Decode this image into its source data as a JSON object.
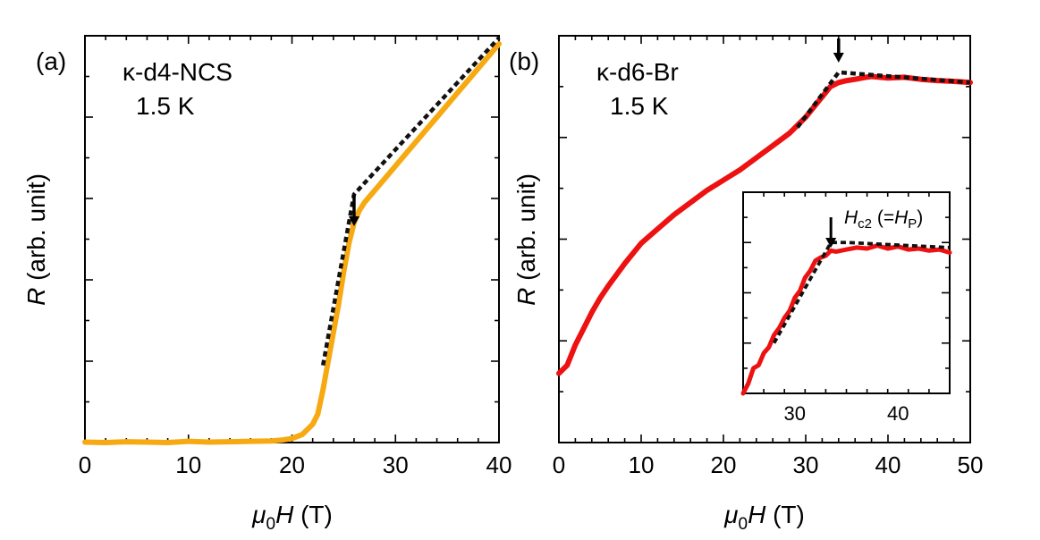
{
  "colors": {
    "panel_a_series": "#f7a911",
    "panel_b_series": "#ee1111",
    "fit_line": "#111111",
    "axis": "#000000"
  },
  "chart_data": [
    {
      "id": "a",
      "type": "line",
      "panel_label": "(a)",
      "annotation_lines": [
        "κ-d4-NCS",
        "1.5 K"
      ],
      "xlabel": {
        "base": "μ",
        "sub": "0",
        "mid": "H",
        "tail": " (T)"
      },
      "ylabel": {
        "base": "R",
        "tail": " (arb. unit)"
      },
      "xlim": [
        0,
        40
      ],
      "ylim": [
        0,
        1
      ],
      "xticks": [
        0,
        10,
        20,
        30,
        40
      ],
      "xtick_labels": [
        "0",
        "10",
        "20",
        "30",
        "40"
      ],
      "series": [
        {
          "name": "measured R(H)",
          "style": "thick",
          "x": [
            0,
            2,
            4,
            6,
            8,
            10,
            12,
            14,
            16,
            18,
            19,
            20,
            21,
            22,
            22.5,
            23,
            23.5,
            24,
            24.5,
            25,
            25.5,
            26,
            26.5,
            27,
            28,
            29,
            30,
            31,
            32,
            33,
            34,
            35,
            36,
            37,
            38,
            39,
            40
          ],
          "y": [
            0.001,
            0.0,
            0.002,
            0.001,
            0.0,
            0.003,
            0.001,
            0.002,
            0.003,
            0.004,
            0.006,
            0.01,
            0.02,
            0.045,
            0.07,
            0.13,
            0.2,
            0.27,
            0.34,
            0.42,
            0.49,
            0.54,
            0.57,
            0.59,
            0.62,
            0.65,
            0.68,
            0.71,
            0.74,
            0.77,
            0.8,
            0.83,
            0.86,
            0.89,
            0.92,
            0.95,
            0.98
          ]
        },
        {
          "name": "linear extrapolation",
          "style": "dashed",
          "x": [
            23,
            26,
            40
          ],
          "y": [
            0.19,
            0.61,
            0.995
          ]
        }
      ],
      "arrow": {
        "x": 26,
        "label": ""
      }
    },
    {
      "id": "b",
      "type": "line",
      "panel_label": "(b)",
      "annotation_lines": [
        "κ-d6-Br",
        "1.5 K"
      ],
      "xlabel": {
        "base": "μ",
        "sub": "0",
        "mid": "H",
        "tail": " (T)"
      },
      "ylabel": {
        "base": "R",
        "tail": " (arb. unit)"
      },
      "xlim": [
        0,
        50
      ],
      "ylim": [
        0,
        1
      ],
      "xticks": [
        0,
        10,
        20,
        30,
        40,
        50
      ],
      "xtick_labels": [
        "0",
        "10",
        "20",
        "30",
        "40",
        "50"
      ],
      "series": [
        {
          "name": "measured R(H)",
          "style": "thick",
          "x": [
            0,
            1,
            2,
            3,
            4,
            5,
            6,
            8,
            10,
            12,
            14,
            16,
            18,
            20,
            22,
            24,
            26,
            28,
            30,
            31,
            32,
            33,
            34,
            35,
            36,
            37,
            38,
            40,
            42,
            44,
            46,
            48,
            50
          ],
          "y": [
            0.17,
            0.19,
            0.24,
            0.28,
            0.32,
            0.355,
            0.385,
            0.44,
            0.49,
            0.525,
            0.56,
            0.59,
            0.62,
            0.645,
            0.67,
            0.7,
            0.73,
            0.76,
            0.8,
            0.825,
            0.85,
            0.875,
            0.885,
            0.89,
            0.893,
            0.897,
            0.9,
            0.896,
            0.898,
            0.893,
            0.89,
            0.888,
            0.885
          ]
        },
        {
          "name": "linear extrapolation",
          "style": "dashed",
          "x": [
            29,
            34,
            50
          ],
          "y": [
            0.775,
            0.91,
            0.885
          ]
        }
      ],
      "arrow": {
        "x": 34,
        "label": ""
      },
      "inset": {
        "xlim": [
          25,
          45
        ],
        "ylim": [
          0.74,
          0.94
        ],
        "xticks": [
          30,
          40
        ],
        "xtick_labels": [
          "30",
          "40"
        ],
        "annotation": {
          "base": "H",
          "sub": "c2",
          "mid": " (=",
          "base2": "H",
          "sub2": "P",
          "tail": ")"
        },
        "series": [
          {
            "name": "measured R(H) zoom",
            "style": "thick",
            "x": [
              25,
              25.5,
              26,
              26.5,
              27,
              27.5,
              28,
              28.5,
              29,
              29.5,
              30,
              30.5,
              31,
              31.5,
              32,
              32.5,
              33,
              33.5,
              34,
              35,
              36,
              37,
              38,
              39,
              40,
              41,
              42,
              43,
              44,
              45
            ],
            "y": [
              0.74,
              0.75,
              0.765,
              0.768,
              0.78,
              0.786,
              0.798,
              0.805,
              0.815,
              0.822,
              0.835,
              0.842,
              0.855,
              0.862,
              0.872,
              0.875,
              0.877,
              0.882,
              0.881,
              0.883,
              0.885,
              0.884,
              0.887,
              0.884,
              0.886,
              0.883,
              0.884,
              0.882,
              0.883,
              0.88
            ]
          },
          {
            "name": "linear extrapolation zoom",
            "style": "dashed",
            "x": [
              28,
              33.5,
              35,
              45
            ],
            "y": [
              0.79,
              0.89,
              0.89,
              0.885
            ]
          }
        ],
        "arrow": {
          "x": 33.5
        }
      }
    }
  ]
}
